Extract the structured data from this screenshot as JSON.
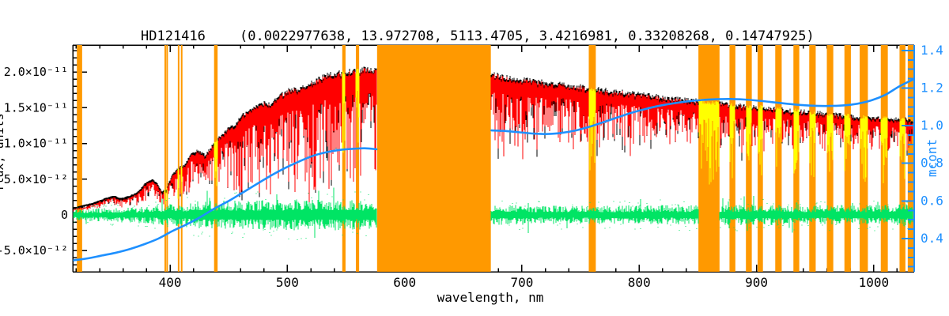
{
  "title": {
    "star": "HD121416",
    "params": "(0.0022977638, 13.972708, 5113.4705, 3.4216981, 0.33208268, 0.14747925)"
  },
  "colors": {
    "spectrum": "#000000",
    "model": "#ff0000",
    "masked_spectrum": "#ffff00",
    "residual": "#00e464",
    "continuum": "#1e90ff",
    "band": "#ff9900",
    "axis": "#000000",
    "background": "#ffffff"
  },
  "chart_data": {
    "type": "line",
    "title": "HD121416   (0.0022977638, 13.972708, 5113.4705, 3.4216981, 0.33208268, 0.14747925)",
    "xlabel": "wavelength, nm",
    "ylabel_left_clipped": "flux, units",
    "ylabel_right": "mcont",
    "xlim": [
      317,
      1034.5
    ],
    "ylim_left_1e12": [
      -7.96,
      23.78
    ],
    "ylim_right_mcont": [
      0.2235,
      1.429
    ],
    "grid": false,
    "x_major_ticks": [
      400,
      500,
      600,
      700,
      800,
      900,
      1000
    ],
    "x_minor_step_nm": 20,
    "left_ticks": {
      "values_1e12": [
        20,
        15,
        10,
        5,
        0,
        -5
      ],
      "labels": [
        "2.0×10⁻¹¹",
        "1.5×10⁻¹¹",
        "1.0×10⁻¹¹",
        "5.0×10⁻¹²",
        "0",
        "-5.0×10⁻¹²"
      ],
      "minor_step_1e12": 1
    },
    "right_ticks": {
      "values": [
        1.4,
        1.2,
        1.0,
        0.8,
        0.6,
        0.4
      ],
      "labels": [
        "1.4",
        "1.2",
        "1.0",
        "0.8",
        "0.6",
        "0.4"
      ],
      "minor_step": 0.05
    },
    "masked_bands_nm": [
      {
        "from": 320.5,
        "to": 325.0,
        "type": "edge"
      },
      {
        "from": 395.2,
        "to": 396.2,
        "type": "line"
      },
      {
        "from": 396.8,
        "to": 397.8,
        "type": "line"
      },
      {
        "from": 406.6,
        "to": 407.8,
        "type": "line"
      },
      {
        "from": 409.2,
        "to": 410.4,
        "type": "line"
      },
      {
        "from": 437.5,
        "to": 440.5,
        "type": "line"
      },
      {
        "from": 546.8,
        "to": 549.6,
        "type": "line"
      },
      {
        "from": 558.4,
        "to": 561.2,
        "type": "line"
      },
      {
        "from": 576.5,
        "to": 673.5,
        "type": "gap"
      },
      {
        "from": 757.0,
        "to": 763.0,
        "type": "line"
      },
      {
        "from": 850.5,
        "to": 868.5,
        "type": "wide"
      },
      {
        "from": 877.0,
        "to": 882.0,
        "type": "line"
      },
      {
        "from": 891.0,
        "to": 896.0,
        "type": "line"
      },
      {
        "from": 901.0,
        "to": 905.5,
        "type": "line"
      },
      {
        "from": 916.0,
        "to": 921.5,
        "type": "line"
      },
      {
        "from": 931.5,
        "to": 936.5,
        "type": "line"
      },
      {
        "from": 945.0,
        "to": 950.5,
        "type": "line"
      },
      {
        "from": 960.0,
        "to": 965.5,
        "type": "line"
      },
      {
        "from": 975.0,
        "to": 980.5,
        "type": "line"
      },
      {
        "from": 988.0,
        "to": 995.0,
        "type": "line"
      },
      {
        "from": 1006.0,
        "to": 1012.0,
        "type": "line"
      },
      {
        "from": 1022.0,
        "to": 1027.0,
        "type": "line"
      },
      {
        "from": 1029.0,
        "to": 1035.0,
        "type": "edge"
      }
    ],
    "series": [
      {
        "name": "observed_spectrum",
        "color": "black",
        "style": "noisy_line",
        "continuum_points_nm_1e12": [
          [
            318,
            1.0
          ],
          [
            325,
            1.3
          ],
          [
            335,
            1.7
          ],
          [
            345,
            2.3
          ],
          [
            352,
            2.6
          ],
          [
            358,
            2.3
          ],
          [
            365,
            2.6
          ],
          [
            372,
            3.1
          ],
          [
            378,
            4.2
          ],
          [
            384,
            4.9
          ],
          [
            389,
            4.4
          ],
          [
            393,
            3.2
          ],
          [
            397,
            3.6
          ],
          [
            402,
            5.6
          ],
          [
            408,
            6.6
          ],
          [
            413,
            6.9
          ],
          [
            418,
            8.4
          ],
          [
            424,
            8.9
          ],
          [
            430,
            8.1
          ],
          [
            436,
            9.5
          ],
          [
            442,
            10.6
          ],
          [
            448,
            11.7
          ],
          [
            455,
            12.4
          ],
          [
            462,
            13.6
          ],
          [
            470,
            14.5
          ],
          [
            478,
            15.3
          ],
          [
            486,
            15.2
          ],
          [
            494,
            16.3
          ],
          [
            502,
            17.2
          ],
          [
            510,
            17.1
          ],
          [
            518,
            17.9
          ],
          [
            526,
            18.6
          ],
          [
            534,
            19.2
          ],
          [
            542,
            19.3
          ],
          [
            550,
            19.6
          ],
          [
            558,
            19.7
          ],
          [
            566,
            19.9
          ],
          [
            576,
            19.7
          ],
          [
            674,
            19.2
          ],
          [
            690,
            18.8
          ],
          [
            710,
            18.3
          ],
          [
            730,
            17.9
          ],
          [
            750,
            17.5
          ],
          [
            770,
            17.1
          ],
          [
            790,
            16.7
          ],
          [
            810,
            16.3
          ],
          [
            830,
            15.9
          ],
          [
            850,
            15.6
          ],
          [
            870,
            15.2
          ],
          [
            890,
            14.9
          ],
          [
            910,
            14.6
          ],
          [
            930,
            14.3
          ],
          [
            950,
            14.0
          ],
          [
            970,
            13.7
          ],
          [
            990,
            13.4
          ],
          [
            1010,
            13.2
          ],
          [
            1034,
            13.0
          ]
        ],
        "absorption_depth_fraction": [
          [
            318,
            0.5
          ],
          [
            350,
            0.5
          ],
          [
            380,
            0.55
          ],
          [
            400,
            0.6
          ],
          [
            420,
            0.62
          ],
          [
            440,
            0.75
          ],
          [
            470,
            0.8
          ],
          [
            500,
            0.82
          ],
          [
            530,
            0.82
          ],
          [
            560,
            0.78
          ],
          [
            576,
            0.72
          ],
          [
            674,
            0.55
          ],
          [
            700,
            0.6
          ],
          [
            730,
            0.45
          ],
          [
            760,
            0.5
          ],
          [
            790,
            0.42
          ],
          [
            820,
            0.4
          ],
          [
            850,
            0.42
          ],
          [
            880,
            0.45
          ],
          [
            910,
            0.4
          ],
          [
            940,
            0.38
          ],
          [
            970,
            0.35
          ],
          [
            1000,
            0.32
          ],
          [
            1034,
            0.32
          ]
        ]
      },
      {
        "name": "model_fit",
        "color": "red",
        "style": "noisy_overlay_of_observed"
      },
      {
        "name": "residual_obs_minus_model",
        "color": "green",
        "center_1e12": 0,
        "halfamp_points_nm_1e12": [
          [
            318,
            0.6
          ],
          [
            340,
            0.8
          ],
          [
            360,
            0.9
          ],
          [
            380,
            1.0
          ],
          [
            400,
            1.3
          ],
          [
            430,
            1.7
          ],
          [
            460,
            1.7
          ],
          [
            500,
            1.8
          ],
          [
            540,
            1.8
          ],
          [
            576,
            1.7
          ],
          [
            674,
            1.2
          ],
          [
            700,
            1.15
          ],
          [
            740,
            1.05
          ],
          [
            780,
            1.1
          ],
          [
            820,
            1.15
          ],
          [
            860,
            1.1
          ],
          [
            900,
            1.25
          ],
          [
            940,
            1.1
          ],
          [
            980,
            1.15
          ],
          [
            1010,
            1.2
          ],
          [
            1034,
            1.35
          ]
        ]
      },
      {
        "name": "mcont_continuum",
        "color": "blue",
        "axis": "right",
        "points_nm_mcont": [
          [
            318,
            0.285
          ],
          [
            330,
            0.295
          ],
          [
            342,
            0.31
          ],
          [
            354,
            0.325
          ],
          [
            366,
            0.345
          ],
          [
            378,
            0.37
          ],
          [
            390,
            0.4
          ],
          [
            402,
            0.44
          ],
          [
            414,
            0.475
          ],
          [
            426,
            0.515
          ],
          [
            438,
            0.56
          ],
          [
            450,
            0.6
          ],
          [
            462,
            0.645
          ],
          [
            474,
            0.69
          ],
          [
            486,
            0.735
          ],
          [
            498,
            0.775
          ],
          [
            510,
            0.81
          ],
          [
            522,
            0.84
          ],
          [
            534,
            0.86
          ],
          [
            546,
            0.872
          ],
          [
            558,
            0.878
          ],
          [
            566,
            0.88
          ],
          [
            576,
            0.875
          ],
          [
            674,
            0.975
          ],
          [
            686,
            0.972
          ],
          [
            698,
            0.965
          ],
          [
            710,
            0.958
          ],
          [
            722,
            0.956
          ],
          [
            734,
            0.962
          ],
          [
            746,
            0.975
          ],
          [
            758,
            0.995
          ],
          [
            770,
            1.02
          ],
          [
            782,
            1.045
          ],
          [
            794,
            1.07
          ],
          [
            806,
            1.09
          ],
          [
            818,
            1.107
          ],
          [
            830,
            1.12
          ],
          [
            842,
            1.13
          ],
          [
            854,
            1.137
          ],
          [
            866,
            1.141
          ],
          [
            878,
            1.142
          ],
          [
            890,
            1.139
          ],
          [
            902,
            1.133
          ],
          [
            914,
            1.125
          ],
          [
            926,
            1.117
          ],
          [
            938,
            1.11
          ],
          [
            950,
            1.106
          ],
          [
            962,
            1.105
          ],
          [
            974,
            1.108
          ],
          [
            986,
            1.117
          ],
          [
            998,
            1.135
          ],
          [
            1010,
            1.165
          ],
          [
            1022,
            1.21
          ],
          [
            1034,
            1.247
          ]
        ]
      }
    ]
  }
}
